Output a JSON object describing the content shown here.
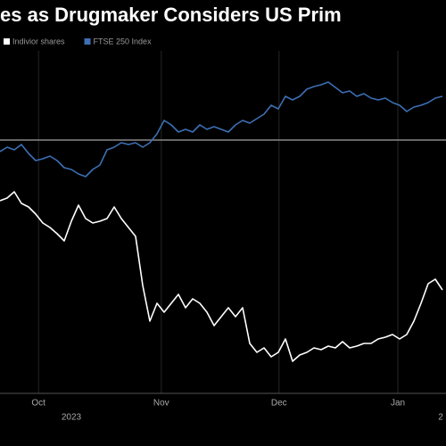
{
  "chart_data": {
    "type": "line",
    "title": "es as Drugmaker Considers US Prim",
    "legend": "top-left",
    "xlim": [
      0,
      62
    ],
    "xticks": [
      {
        "value": 5.4,
        "label": "Oct"
      },
      {
        "value": 22.6,
        "label": "Nov"
      },
      {
        "value": 39.1,
        "label": "Dec"
      },
      {
        "value": 55.75,
        "label": "Jan"
      }
    ],
    "year_labels": [
      {
        "value": 10,
        "label": "2023"
      },
      {
        "value": 61.75,
        "label": "2"
      }
    ],
    "ylim": [
      29,
      125
    ],
    "reference_line": 100,
    "series": [
      {
        "name": "Indivior shares",
        "color": "#ffffff",
        "values": [
          83,
          83.75,
          85.5,
          82.25,
          81.25,
          79.25,
          76.75,
          75.5,
          73.75,
          71.75,
          77.25,
          81.75,
          78,
          76.75,
          77.25,
          78,
          81.25,
          78,
          75.5,
          73,
          59.25,
          49.25,
          54.25,
          51.75,
          54.25,
          56.75,
          53,
          55.5,
          54.25,
          51.75,
          48,
          50.5,
          53,
          50.5,
          53,
          43,
          40.5,
          41.75,
          39.25,
          40.5,
          44.25,
          38,
          39.75,
          40.5,
          41.75,
          41.25,
          42.25,
          41.75,
          43.5,
          41.75,
          42.25,
          43,
          43,
          44.25,
          44.75,
          45.5,
          44.25,
          45.5,
          49.25,
          54.25,
          59.75,
          61,
          58
        ]
      },
      {
        "name": "FTSE 250 Index",
        "color": "#3d6fb4",
        "values": [
          96.75,
          98,
          97.25,
          98.75,
          96.25,
          94.25,
          94.75,
          95.5,
          94.25,
          92.25,
          91.75,
          90.5,
          89.75,
          91.75,
          93,
          97.25,
          98,
          99.25,
          98.75,
          99.25,
          98,
          99.25,
          101.75,
          105.5,
          104.25,
          102.25,
          103,
          102.25,
          104.25,
          103,
          103.75,
          103,
          102.25,
          104.25,
          105.5,
          104.75,
          106,
          107.25,
          109.75,
          108.75,
          112.25,
          111.25,
          112.25,
          114.25,
          115,
          115.5,
          116.25,
          114.75,
          113.25,
          113.75,
          112.25,
          113,
          111.75,
          111.25,
          111.75,
          110.5,
          109.75,
          108,
          109.25,
          109.75,
          110.5,
          111.75,
          112.25
        ]
      }
    ]
  }
}
